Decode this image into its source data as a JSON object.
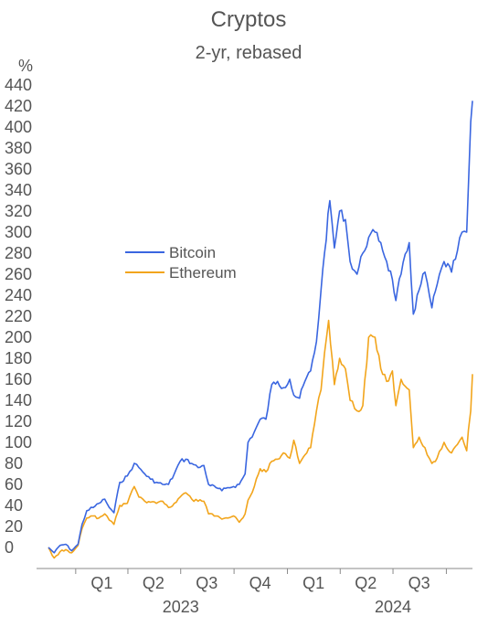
{
  "chart_data": {
    "type": "line",
    "title": "Cryptos",
    "subtitle": "2-yr, rebased",
    "y_unit": "%",
    "ylim": [
      -20,
      440
    ],
    "y_ticks": [
      0,
      20,
      40,
      60,
      80,
      100,
      120,
      140,
      160,
      180,
      200,
      220,
      240,
      260,
      280,
      300,
      320,
      340,
      360,
      380,
      400,
      420,
      440
    ],
    "x_range": [
      "2022-11-15",
      "2024-11-15"
    ],
    "quarter_labels": [
      {
        "label": "Q1",
        "center": "2023-02-15"
      },
      {
        "label": "Q2",
        "center": "2023-05-15"
      },
      {
        "label": "Q3",
        "center": "2023-08-15"
      },
      {
        "label": "Q4",
        "center": "2023-11-15"
      },
      {
        "label": "Q1",
        "center": "2024-02-15"
      },
      {
        "label": "Q2",
        "center": "2024-05-15"
      },
      {
        "label": "Q3",
        "center": "2024-08-15"
      }
    ],
    "quarter_ticks": [
      "2023-01-01",
      "2023-04-01",
      "2023-07-01",
      "2023-10-01",
      "2024-01-01",
      "2024-04-01",
      "2024-07-01",
      "2024-10-01"
    ],
    "year_labels": [
      {
        "label": "2023",
        "center": "2023-07-01"
      },
      {
        "label": "2024",
        "center": "2024-07-01"
      }
    ],
    "grid": false,
    "legend_position": "center-left",
    "series": [
      {
        "name": "Bitcoin",
        "color": "#3a66e0",
        "points": [
          [
            "2022-11-15",
            0
          ],
          [
            "2022-11-25",
            -5
          ],
          [
            "2022-12-05",
            2
          ],
          [
            "2022-12-15",
            3
          ],
          [
            "2022-12-25",
            -3
          ],
          [
            "2023-01-05",
            3
          ],
          [
            "2023-01-12",
            22
          ],
          [
            "2023-01-20",
            35
          ],
          [
            "2023-01-31",
            38
          ],
          [
            "2023-02-10",
            42
          ],
          [
            "2023-02-20",
            46
          ],
          [
            "2023-02-28",
            38
          ],
          [
            "2023-03-08",
            33
          ],
          [
            "2023-03-18",
            62
          ],
          [
            "2023-03-31",
            68
          ],
          [
            "2023-04-12",
            80
          ],
          [
            "2023-04-20",
            76
          ],
          [
            "2023-04-30",
            70
          ],
          [
            "2023-05-10",
            65
          ],
          [
            "2023-05-20",
            62
          ],
          [
            "2023-05-31",
            60
          ],
          [
            "2023-06-10",
            60
          ],
          [
            "2023-06-20",
            70
          ],
          [
            "2023-06-30",
            82
          ],
          [
            "2023-07-10",
            84
          ],
          [
            "2023-07-20",
            80
          ],
          [
            "2023-07-31",
            76
          ],
          [
            "2023-08-10",
            78
          ],
          [
            "2023-08-18",
            60
          ],
          [
            "2023-08-31",
            57
          ],
          [
            "2023-09-10",
            54
          ],
          [
            "2023-09-20",
            57
          ],
          [
            "2023-09-30",
            58
          ],
          [
            "2023-10-10",
            60
          ],
          [
            "2023-10-20",
            70
          ],
          [
            "2023-10-25",
            100
          ],
          [
            "2023-11-05",
            110
          ],
          [
            "2023-11-15",
            122
          ],
          [
            "2023-11-25",
            122
          ],
          [
            "2023-12-05",
            155
          ],
          [
            "2023-12-15",
            158
          ],
          [
            "2023-12-25",
            152
          ],
          [
            "2024-01-05",
            160
          ],
          [
            "2024-01-12",
            145
          ],
          [
            "2024-01-22",
            142
          ],
          [
            "2024-01-31",
            158
          ],
          [
            "2024-02-10",
            168
          ],
          [
            "2024-02-20",
            196
          ],
          [
            "2024-02-28",
            245
          ],
          [
            "2024-03-05",
            280
          ],
          [
            "2024-03-14",
            330
          ],
          [
            "2024-03-22",
            285
          ],
          [
            "2024-03-31",
            320
          ],
          [
            "2024-04-10",
            312
          ],
          [
            "2024-04-18",
            272
          ],
          [
            "2024-04-30",
            260
          ],
          [
            "2024-05-10",
            280
          ],
          [
            "2024-05-20",
            295
          ],
          [
            "2024-05-31",
            300
          ],
          [
            "2024-06-10",
            290
          ],
          [
            "2024-06-20",
            272
          ],
          [
            "2024-06-30",
            255
          ],
          [
            "2024-07-06",
            235
          ],
          [
            "2024-07-15",
            260
          ],
          [
            "2024-07-29",
            290
          ],
          [
            "2024-08-05",
            222
          ],
          [
            "2024-08-15",
            245
          ],
          [
            "2024-08-25",
            262
          ],
          [
            "2024-09-06",
            228
          ],
          [
            "2024-09-15",
            250
          ],
          [
            "2024-09-27",
            272
          ],
          [
            "2024-10-10",
            262
          ],
          [
            "2024-10-20",
            282
          ],
          [
            "2024-10-28",
            300
          ],
          [
            "2024-11-05",
            300
          ],
          [
            "2024-11-08",
            345
          ],
          [
            "2024-11-12",
            405
          ],
          [
            "2024-11-15",
            425
          ]
        ]
      },
      {
        "name": "Ethereum",
        "color": "#f2a51c",
        "points": [
          [
            "2022-11-15",
            0
          ],
          [
            "2022-11-25",
            -10
          ],
          [
            "2022-12-05",
            -4
          ],
          [
            "2022-12-15",
            -2
          ],
          [
            "2022-12-25",
            -5
          ],
          [
            "2023-01-05",
            2
          ],
          [
            "2023-01-12",
            18
          ],
          [
            "2023-01-20",
            28
          ],
          [
            "2023-01-31",
            30
          ],
          [
            "2023-02-10",
            28
          ],
          [
            "2023-02-20",
            32
          ],
          [
            "2023-02-28",
            26
          ],
          [
            "2023-03-08",
            22
          ],
          [
            "2023-03-18",
            40
          ],
          [
            "2023-03-31",
            42
          ],
          [
            "2023-04-12",
            58
          ],
          [
            "2023-04-20",
            48
          ],
          [
            "2023-04-30",
            44
          ],
          [
            "2023-05-10",
            43
          ],
          [
            "2023-05-20",
            42
          ],
          [
            "2023-05-31",
            44
          ],
          [
            "2023-06-10",
            38
          ],
          [
            "2023-06-20",
            42
          ],
          [
            "2023-06-30",
            48
          ],
          [
            "2023-07-10",
            52
          ],
          [
            "2023-07-20",
            46
          ],
          [
            "2023-07-31",
            44
          ],
          [
            "2023-08-10",
            44
          ],
          [
            "2023-08-18",
            32
          ],
          [
            "2023-08-31",
            30
          ],
          [
            "2023-09-10",
            27
          ],
          [
            "2023-09-20",
            28
          ],
          [
            "2023-09-30",
            30
          ],
          [
            "2023-10-10",
            24
          ],
          [
            "2023-10-20",
            32
          ],
          [
            "2023-10-25",
            45
          ],
          [
            "2023-11-05",
            58
          ],
          [
            "2023-11-15",
            75
          ],
          [
            "2023-11-25",
            72
          ],
          [
            "2023-12-05",
            82
          ],
          [
            "2023-12-15",
            84
          ],
          [
            "2023-12-25",
            90
          ],
          [
            "2024-01-05",
            85
          ],
          [
            "2024-01-12",
            102
          ],
          [
            "2024-01-22",
            80
          ],
          [
            "2024-01-31",
            88
          ],
          [
            "2024-02-10",
            95
          ],
          [
            "2024-02-20",
            130
          ],
          [
            "2024-02-28",
            150
          ],
          [
            "2024-03-05",
            185
          ],
          [
            "2024-03-12",
            216
          ],
          [
            "2024-03-22",
            155
          ],
          [
            "2024-03-31",
            180
          ],
          [
            "2024-04-10",
            170
          ],
          [
            "2024-04-18",
            140
          ],
          [
            "2024-04-30",
            130
          ],
          [
            "2024-05-10",
            135
          ],
          [
            "2024-05-20",
            200
          ],
          [
            "2024-05-31",
            200
          ],
          [
            "2024-06-10",
            170
          ],
          [
            "2024-06-20",
            158
          ],
          [
            "2024-06-30",
            168
          ],
          [
            "2024-07-06",
            135
          ],
          [
            "2024-07-15",
            160
          ],
          [
            "2024-07-29",
            150
          ],
          [
            "2024-08-05",
            95
          ],
          [
            "2024-08-15",
            105
          ],
          [
            "2024-08-25",
            95
          ],
          [
            "2024-09-06",
            80
          ],
          [
            "2024-09-15",
            85
          ],
          [
            "2024-09-27",
            100
          ],
          [
            "2024-10-10",
            90
          ],
          [
            "2024-10-20",
            98
          ],
          [
            "2024-10-28",
            105
          ],
          [
            "2024-11-05",
            92
          ],
          [
            "2024-11-08",
            112
          ],
          [
            "2024-11-12",
            130
          ],
          [
            "2024-11-15",
            165
          ]
        ]
      }
    ]
  }
}
